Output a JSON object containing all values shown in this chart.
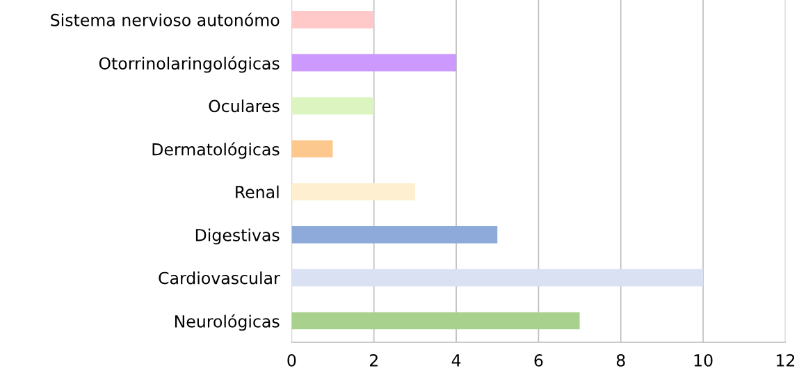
{
  "chart_data": {
    "type": "bar",
    "orientation": "horizontal",
    "categories": [
      "Sistema nervioso autonómo",
      "Otorrinolaringológicas",
      "Oculares",
      "Dermatológicas",
      "Renal",
      "Digestivas",
      "Cardiovascular",
      "Neurológicas"
    ],
    "values": [
      2,
      4,
      2,
      1,
      3,
      5,
      10,
      7
    ],
    "colors": [
      "#ffc9c9",
      "#cc99ff",
      "#dcf5c0",
      "#fdc88e",
      "#fdefcf",
      "#8eaadb",
      "#d9e1f2",
      "#a9d18e"
    ],
    "xlim": [
      0,
      12
    ],
    "xticks": [
      0,
      2,
      4,
      6,
      8,
      10,
      12
    ],
    "grid": "x"
  }
}
